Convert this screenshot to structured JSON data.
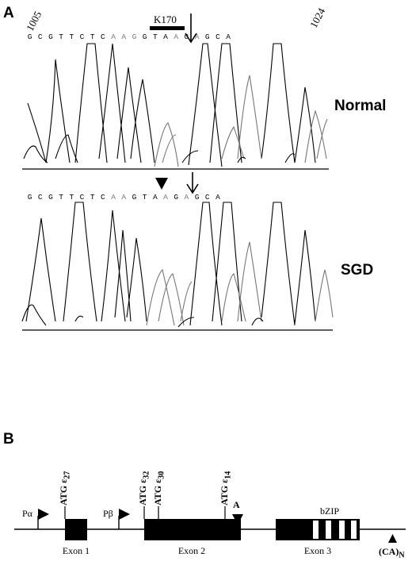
{
  "panel_a": {
    "label": "A",
    "position_start": "1005",
    "position_end": "1024",
    "normal_sequence": [
      "G",
      "C",
      "G",
      "T",
      "T",
      "C",
      "T",
      "C",
      "A",
      "A",
      "G",
      "G",
      "T",
      "A",
      "A",
      "G",
      "A",
      "G",
      "C",
      "A"
    ],
    "sgd_sequence": [
      "G",
      "C",
      "G",
      "T",
      "T",
      "C",
      "T",
      "C",
      "A",
      "A",
      "G",
      "T",
      "A",
      "A",
      "G",
      "A",
      "G",
      "C",
      "A"
    ],
    "k170_label": "K170",
    "normal_label": "Normal",
    "sgd_label": "SGD"
  },
  "panel_b": {
    "label": "B",
    "promoter_alpha": "Pα",
    "promoter_beta": "Pβ",
    "atg_27": "ATG ε27",
    "atg_32": "ATG ε32",
    "atg_30": "ATG ε30",
    "atg_14": "ATG ε14",
    "mutation_marker": "A",
    "bzip_label": "bZIP",
    "exon1_label": "Exon 1",
    "exon2_label": "Exon 2",
    "exon3_label": "Exon 3",
    "ca_repeat_label": "(CA)N"
  }
}
